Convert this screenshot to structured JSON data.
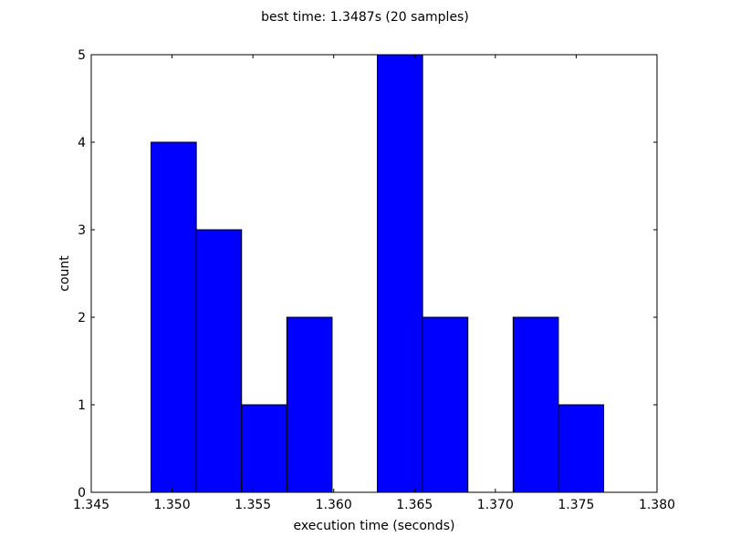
{
  "chart_data": {
    "type": "bar",
    "title": "best time: 1.3487s (20 samples)",
    "xlabel": "execution time (seconds)",
    "ylabel": "count",
    "xlim": [
      1.345,
      1.38
    ],
    "ylim": [
      0,
      5
    ],
    "xticks": [
      "1.345",
      "1.350",
      "1.355",
      "1.360",
      "1.365",
      "1.370",
      "1.375",
      "1.380"
    ],
    "yticks": [
      "0",
      "1",
      "2",
      "3",
      "4",
      "5"
    ],
    "bar_color": "#0000ff",
    "edge_color": "#000000",
    "grid": false,
    "bins": [
      {
        "x0": 1.3487,
        "x1": 1.3515,
        "count": 4
      },
      {
        "x0": 1.3515,
        "x1": 1.3543,
        "count": 3
      },
      {
        "x0": 1.3543,
        "x1": 1.3571,
        "count": 1
      },
      {
        "x0": 1.3571,
        "x1": 1.3599,
        "count": 2
      },
      {
        "x0": 1.3599,
        "x1": 1.3627,
        "count": 0
      },
      {
        "x0": 1.3627,
        "x1": 1.3655,
        "count": 5
      },
      {
        "x0": 1.3655,
        "x1": 1.3683,
        "count": 2
      },
      {
        "x0": 1.3683,
        "x1": 1.3711,
        "count": 0
      },
      {
        "x0": 1.3711,
        "x1": 1.3739,
        "count": 2
      },
      {
        "x0": 1.3739,
        "x1": 1.3767,
        "count": 1
      }
    ]
  }
}
